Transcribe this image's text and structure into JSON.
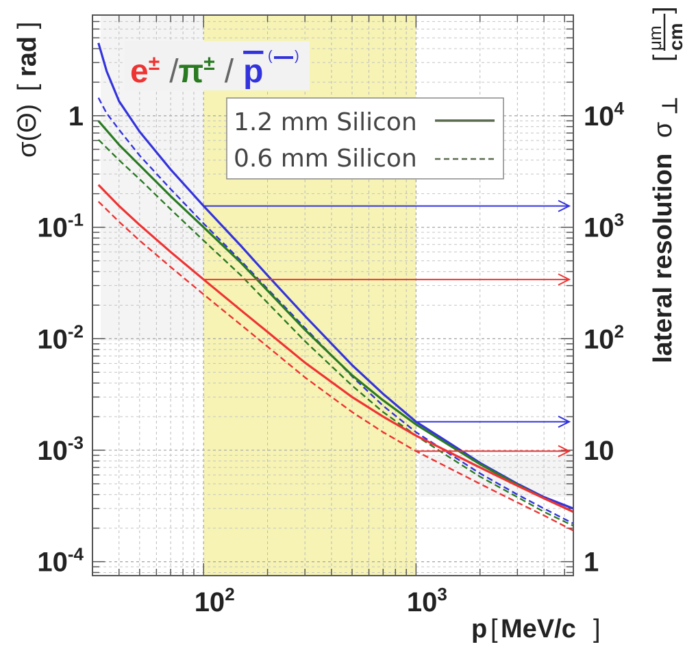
{
  "chart_data": {
    "type": "line",
    "xscale": "log",
    "yscale": "log",
    "xlim": [
      30,
      5500
    ],
    "ylim": [
      7.5e-05,
      8
    ],
    "xlabel": "p",
    "xlabel_unit": "MeV/c",
    "ylabel": "σ(Θ)",
    "ylabel_unit": "rad",
    "y2label": "lateral resolution",
    "y2label_symbol": "σ",
    "y2label_sub": "⊥",
    "y2label_unit_num": "μm",
    "y2label_unit_den": "cm",
    "xticks": [
      {
        "value": 100,
        "base": "10",
        "exp": "2"
      },
      {
        "value": 1000,
        "base": "10",
        "exp": "3"
      }
    ],
    "yticks": [
      {
        "value": 1,
        "base": "1",
        "exp": ""
      },
      {
        "value": 0.1,
        "base": "10",
        "exp": "-1"
      },
      {
        "value": 0.01,
        "base": "10",
        "exp": "-2"
      },
      {
        "value": 0.001,
        "base": "10",
        "exp": "-3"
      },
      {
        "value": 0.0001,
        "base": "10",
        "exp": "-4"
      }
    ],
    "y2ticks": [
      {
        "y_value": 1,
        "base": "10",
        "exp": "4"
      },
      {
        "y_value": 0.1,
        "base": "10",
        "exp": "3"
      },
      {
        "y_value": 0.01,
        "base": "10",
        "exp": "2"
      },
      {
        "y_value": 0.001,
        "base": "10",
        "exp": ""
      },
      {
        "y_value": 0.0001,
        "base": "1",
        "exp": ""
      }
    ],
    "particle_labels": [
      {
        "text": "e",
        "sup": "±",
        "color": "#ee3333"
      },
      {
        "text": "/",
        "sup": "",
        "color": "#666666"
      },
      {
        "text": "π",
        "sup": "±",
        "color": "#2a7a22"
      },
      {
        "text": "/",
        "sup": "",
        "color": "#666666"
      },
      {
        "text": "p",
        "sup": "",
        "color": "#3333dd",
        "overline": true,
        "paren": "( )"
      }
    ],
    "legend": [
      {
        "label": "1.2 mm Silicon",
        "style": "solid"
      },
      {
        "label": "0.6 mm Silicon",
        "style": "dashed"
      }
    ],
    "highlight_band": {
      "x": [
        100,
        1000
      ],
      "color": "#f6f3b4"
    },
    "series": [
      {
        "name": "p 1.2 mm",
        "color": "#3333dd",
        "style": "solid",
        "x": [
          32,
          35,
          40,
          50,
          70,
          100,
          150,
          200,
          300,
          500,
          700,
          1000,
          1500,
          2000,
          3000,
          4000,
          5500
        ],
        "y": [
          4.5,
          2.5,
          1.35,
          0.72,
          0.33,
          0.155,
          0.068,
          0.037,
          0.016,
          0.0058,
          0.0032,
          0.0018,
          0.0011,
          0.00077,
          0.0005,
          0.00038,
          0.0003
        ]
      },
      {
        "name": "p 0.6 mm",
        "color": "#3333dd",
        "style": "dashed",
        "x": [
          32,
          35,
          40,
          50,
          70,
          100,
          150,
          200,
          300,
          500,
          700,
          1000,
          1500,
          2000,
          3000,
          4000,
          5500
        ],
        "y": [
          1.45,
          1.05,
          0.75,
          0.44,
          0.22,
          0.108,
          0.05,
          0.028,
          0.0125,
          0.0046,
          0.0025,
          0.00145,
          0.00088,
          0.00062,
          0.0004,
          0.0003,
          0.00022
        ]
      },
      {
        "name": "pi 1.2 mm",
        "color": "#2a7a22",
        "style": "solid",
        "x": [
          32,
          40,
          50,
          70,
          100,
          150,
          200,
          300,
          500,
          700,
          1000,
          1500,
          2000,
          3000,
          4000,
          5500
        ],
        "y": [
          0.9,
          0.55,
          0.36,
          0.19,
          0.1,
          0.048,
          0.027,
          0.012,
          0.0047,
          0.0028,
          0.0017,
          0.00105,
          0.00075,
          0.00049,
          0.00037,
          0.00028
        ]
      },
      {
        "name": "pi 0.6 mm",
        "color": "#2a7a22",
        "style": "dashed",
        "x": [
          32,
          40,
          50,
          70,
          100,
          150,
          200,
          300,
          500,
          700,
          1000,
          1500,
          2000,
          3000,
          4000,
          5500
        ],
        "y": [
          0.61,
          0.4,
          0.27,
          0.145,
          0.076,
          0.037,
          0.021,
          0.0095,
          0.0038,
          0.0022,
          0.00135,
          0.00082,
          0.00058,
          0.00038,
          0.00028,
          0.00021
        ]
      },
      {
        "name": "e 1.2 mm",
        "color": "#ee3333",
        "style": "solid",
        "x": [
          32,
          40,
          50,
          70,
          100,
          150,
          200,
          300,
          500,
          700,
          1000,
          1500,
          2000,
          3000,
          4000,
          5500
        ],
        "y": [
          0.24,
          0.155,
          0.105,
          0.06,
          0.034,
          0.018,
          0.0115,
          0.0061,
          0.003,
          0.002,
          0.00135,
          0.00092,
          0.0007,
          0.00048,
          0.00037,
          0.00028
        ]
      },
      {
        "name": "e 0.6 mm",
        "color": "#ee3333",
        "style": "dashed",
        "x": [
          32,
          40,
          50,
          70,
          100,
          150,
          200,
          300,
          500,
          700,
          1000,
          1500,
          2000,
          3000,
          4000,
          5500
        ],
        "y": [
          0.17,
          0.112,
          0.076,
          0.044,
          0.025,
          0.0133,
          0.0085,
          0.0045,
          0.0022,
          0.00145,
          0.00098,
          0.00066,
          0.0005,
          0.00034,
          0.00026,
          0.00019
        ]
      }
    ],
    "arrows": [
      {
        "x_from": 100,
        "x_to": 5500,
        "y": 0.155,
        "color": "#3333dd"
      },
      {
        "x_from": 100,
        "x_to": 5500,
        "y": 0.034,
        "color": "#ee3333"
      },
      {
        "x_from": 1000,
        "x_to": 5500,
        "y": 0.0018,
        "color": "#3333dd"
      },
      {
        "x_from": 1000,
        "x_to": 5500,
        "y": 0.00098,
        "color": "#ee3333"
      }
    ],
    "grid": true
  }
}
